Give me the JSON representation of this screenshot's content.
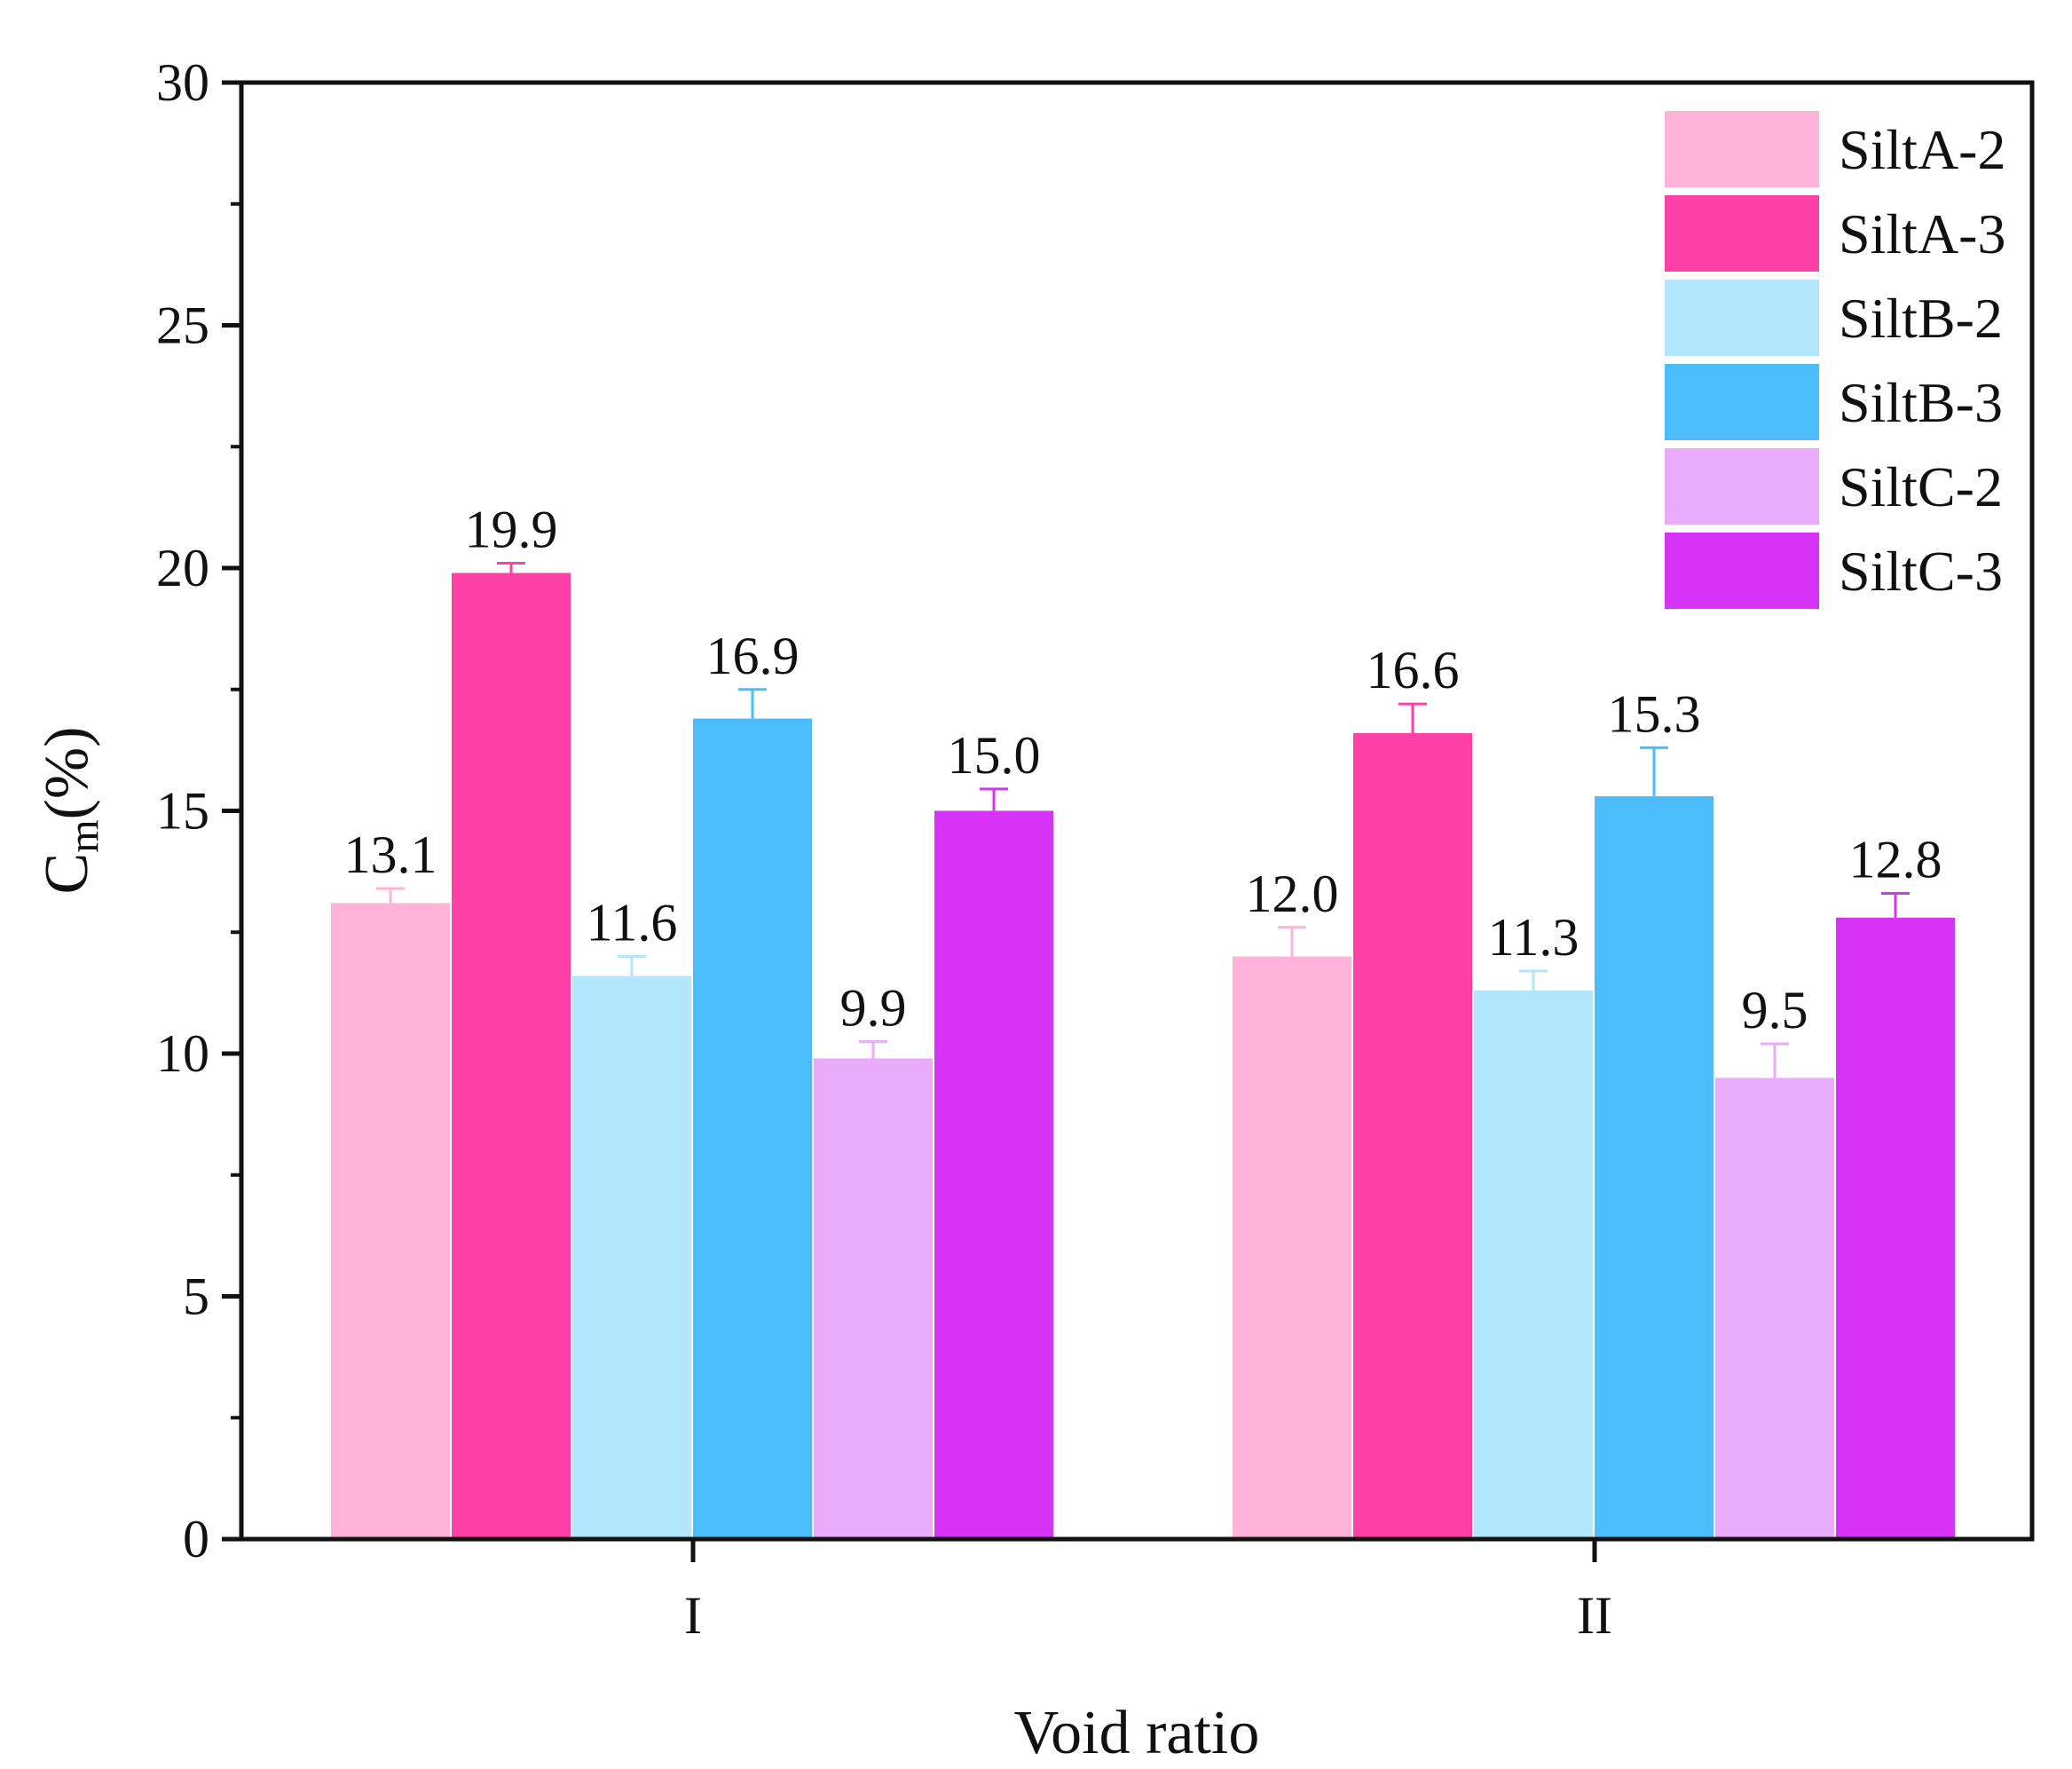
{
  "chart_data": {
    "type": "bar",
    "title": "",
    "xlabel": "Void ratio",
    "ylabel_main": "C",
    "ylabel_sub": "m",
    "ylabel_suffix": "(%)",
    "ylim": [
      0,
      30
    ],
    "yticks": [
      0,
      5,
      10,
      15,
      20,
      25,
      30
    ],
    "categories": [
      "I",
      "II"
    ],
    "legend_position": "top-right",
    "series": [
      {
        "name": "SiltA-2",
        "color": "#ffb3d9",
        "values": [
          13.1,
          12.0
        ],
        "labels": [
          "13.1",
          "12.0"
        ],
        "errors": [
          0.3,
          0.6
        ]
      },
      {
        "name": "SiltA-3",
        "color": "#ff40a6",
        "values": [
          19.9,
          16.6
        ],
        "labels": [
          "19.9",
          "16.6"
        ],
        "errors": [
          0.2,
          0.6
        ]
      },
      {
        "name": "SiltB-2",
        "color": "#b3e5fc",
        "values": [
          11.6,
          11.3
        ],
        "labels": [
          "11.6",
          "11.3"
        ],
        "errors": [
          0.4,
          0.4
        ]
      },
      {
        "name": "SiltB-3",
        "color": "#4dbcfc",
        "values": [
          16.9,
          15.3
        ],
        "labels": [
          "16.9",
          "15.3"
        ],
        "errors": [
          0.6,
          1.0
        ]
      },
      {
        "name": "SiltC-2",
        "color": "#ebabfc",
        "values": [
          9.9,
          9.5
        ],
        "labels": [
          "9.9",
          "9.5"
        ],
        "errors": [
          0.35,
          0.7
        ]
      },
      {
        "name": "SiltC-3",
        "color": "#d633f7",
        "values": [
          15.0,
          12.8
        ],
        "labels": [
          "15.0",
          "12.8"
        ],
        "errors": [
          0.45,
          0.5
        ]
      }
    ]
  }
}
